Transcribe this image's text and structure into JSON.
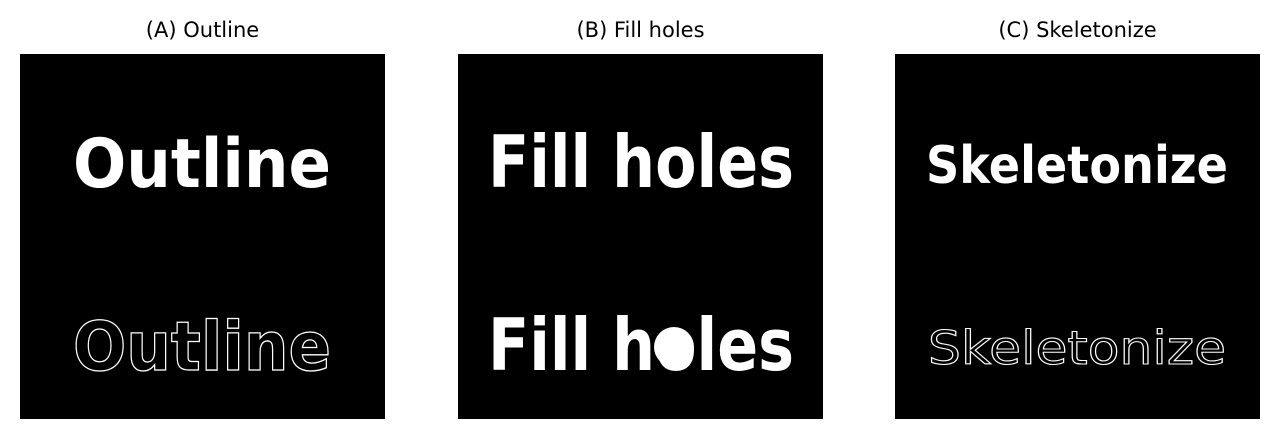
{
  "panels": [
    {
      "title": "(A) Outline",
      "top_text": "Outline",
      "bottom_text": "Outline"
    },
    {
      "title": "(B) Fill holes",
      "top_text": "Fill holes",
      "bottom_text": "Fill holes"
    },
    {
      "title": "(C) Skeletonize",
      "top_text": "Skeletonize",
      "bottom_text": "Skeletonize"
    }
  ],
  "colors": {
    "background": "#000000",
    "foreground": "#ffffff",
    "page": "#ffffff"
  }
}
